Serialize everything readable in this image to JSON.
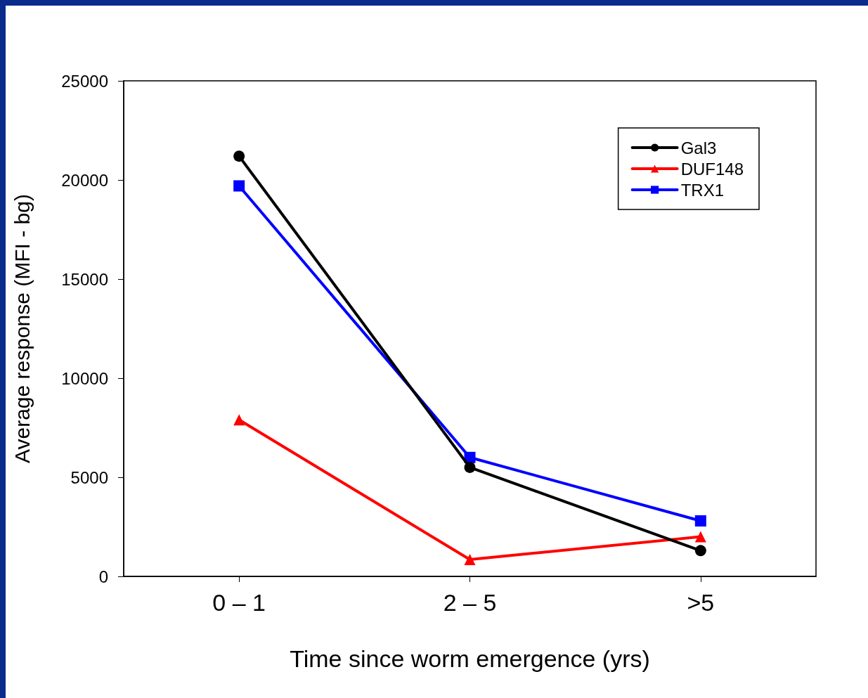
{
  "chart_data": {
    "type": "line",
    "xlabel": "Time since worm emergence (yrs)",
    "ylabel": "Average response (MFI - bg)",
    "categories": [
      "0 – 1",
      "2 – 5",
      ">5"
    ],
    "series": [
      {
        "name": "Gal3",
        "color": "#000000",
        "marker": "circle",
        "values": [
          21200,
          5500,
          1300
        ]
      },
      {
        "name": "DUF148",
        "color": "#ff0000",
        "marker": "triangle",
        "values": [
          7900,
          850,
          2000
        ]
      },
      {
        "name": "TRX1",
        "color": "#0000ff",
        "marker": "square",
        "values": [
          19700,
          6000,
          2800
        ]
      }
    ],
    "ylim": [
      0,
      25000
    ],
    "yticks": [
      0,
      5000,
      10000,
      15000,
      20000,
      25000
    ],
    "grid": false,
    "legend": "top right",
    "line_style": "solid"
  }
}
